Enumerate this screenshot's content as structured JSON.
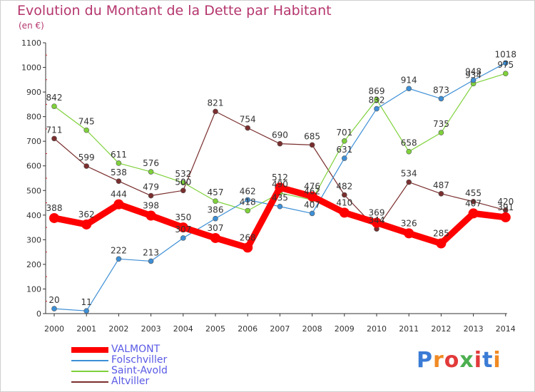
{
  "title": "Evolution du Montant de la Dette par Habitant",
  "subtitle": "(en €)",
  "logo_text": "Proxiti",
  "logo_colors": [
    "#3a7bd5",
    "#f08a24",
    "#e23a3a",
    "#4caf50",
    "#e23a3a",
    "#3a7bd5",
    "#f08a24"
  ],
  "chart_data": {
    "type": "line",
    "title": "Evolution du Montant de la Dette par Habitant",
    "subtitle": "(en €)",
    "xlabel": "",
    "ylabel": "",
    "categories": [
      "2000",
      "2001",
      "2002",
      "2003",
      "2004",
      "2005",
      "2006",
      "2007",
      "2008",
      "2009",
      "2010",
      "2011",
      "2012",
      "2013",
      "2014"
    ],
    "ylim": [
      0,
      1100
    ],
    "yticks": [
      0,
      100,
      200,
      300,
      400,
      500,
      600,
      700,
      800,
      900,
      1000,
      1100
    ],
    "grid": false,
    "legend_position": "bottom-left",
    "series": [
      {
        "name": "VALMONT",
        "color": "#ff0000",
        "values": [
          388,
          362,
          444,
          398,
          350,
          307,
          268,
          512,
          476,
          410,
          369,
          326,
          285,
          407,
          391
        ]
      },
      {
        "name": "Folschviller",
        "color": "#3d8fd6",
        "values": [
          20,
          11,
          222,
          213,
          307,
          386,
          462,
          435,
          407,
          631,
          832,
          914,
          873,
          948,
          1018
        ]
      },
      {
        "name": "Saint-Avold",
        "color": "#7fd13b",
        "values": [
          842,
          745,
          611,
          576,
          532,
          457,
          418,
          490,
          462,
          701,
          869,
          658,
          735,
          934,
          975
        ]
      },
      {
        "name": "Altviller",
        "color": "#7a2e2e",
        "values": [
          711,
          599,
          538,
          479,
          500,
          821,
          754,
          690,
          685,
          482,
          344,
          534,
          487,
          455,
          420
        ]
      }
    ]
  }
}
